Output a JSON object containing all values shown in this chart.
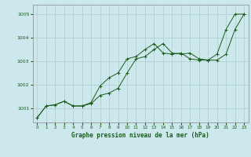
{
  "title": "Graphe pression niveau de la mer (hPa)",
  "background_color": "#cce8ec",
  "grid_color": "#aacccc",
  "line_color": "#1a5c1a",
  "xlim": [
    -0.5,
    23.5
  ],
  "ylim": [
    1000.4,
    1005.4
  ],
  "yticks": [
    1001,
    1002,
    1003,
    1004,
    1005
  ],
  "xticks": [
    0,
    1,
    2,
    3,
    4,
    5,
    6,
    7,
    8,
    9,
    10,
    11,
    12,
    13,
    14,
    15,
    16,
    17,
    18,
    19,
    20,
    21,
    22,
    23
  ],
  "series1_x": [
    0,
    1,
    2,
    3,
    4,
    5,
    6,
    7,
    8,
    9,
    10,
    11,
    12,
    13,
    14,
    15,
    16,
    17,
    18,
    19,
    20,
    21,
    22,
    23
  ],
  "series1_y": [
    1000.6,
    1001.1,
    1001.15,
    1001.3,
    1001.1,
    1001.1,
    1001.2,
    1001.55,
    1001.65,
    1001.85,
    1002.5,
    1003.1,
    1003.2,
    1003.5,
    1003.75,
    1003.35,
    1003.3,
    1003.35,
    1003.1,
    1003.05,
    1003.05,
    1003.3,
    1004.35,
    1005.0
  ],
  "series2_x": [
    0,
    1,
    2,
    3,
    4,
    5,
    6,
    7,
    8,
    9,
    10,
    11,
    12,
    13,
    14,
    15,
    16,
    17,
    18,
    19,
    20,
    21,
    22,
    23
  ],
  "series2_y": [
    1000.6,
    1001.1,
    1001.15,
    1001.3,
    1001.1,
    1001.1,
    1001.25,
    1001.95,
    1002.3,
    1002.5,
    1003.1,
    1003.2,
    1003.5,
    1003.75,
    1003.35,
    1003.3,
    1003.35,
    1003.1,
    1003.05,
    1003.05,
    1003.3,
    1004.35,
    1005.0,
    1005.0
  ]
}
